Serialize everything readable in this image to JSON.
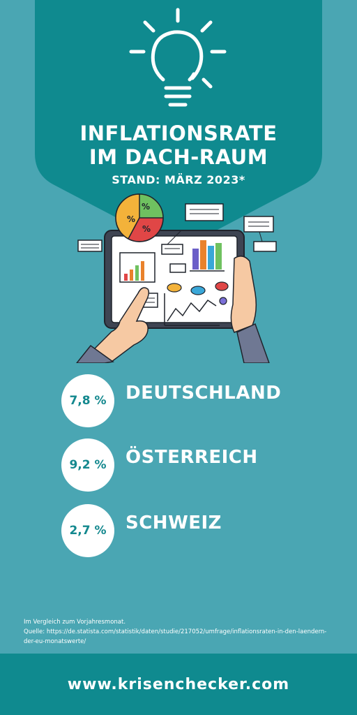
{
  "colors": {
    "background": "#4aa6b3",
    "header_shape": "#0f8a8f",
    "circle": "#ffffff",
    "circle_text": "#13888e",
    "text": "#ffffff"
  },
  "header": {
    "icon": "lightbulb-icon",
    "title_line1": "INFLATIONSRATE",
    "title_line2": "IM DACH-RAUM",
    "subtitle": "STAND: MÄRZ 2023*"
  },
  "illustration": {
    "icon": "tablet-analytics-illustration",
    "pie_labels": [
      "%",
      "%",
      "%"
    ]
  },
  "stats": [
    {
      "value": "7,8 %",
      "country": "DEUTSCHLAND"
    },
    {
      "value": "9,2 %",
      "country": "ÖSTERREICH"
    },
    {
      "value": "2,7 %",
      "country": "SCHWEIZ"
    }
  ],
  "footnote": {
    "line1": "Im Vergleich zum Vorjahresmonat.",
    "line2": "Quelle: https://de.statista.com/statistik/daten/studie/217052/umfrage/inflationsraten-in-den-laendern-der-eu-monatswerte/"
  },
  "footer": {
    "url": "www.krisenchecker.com"
  }
}
